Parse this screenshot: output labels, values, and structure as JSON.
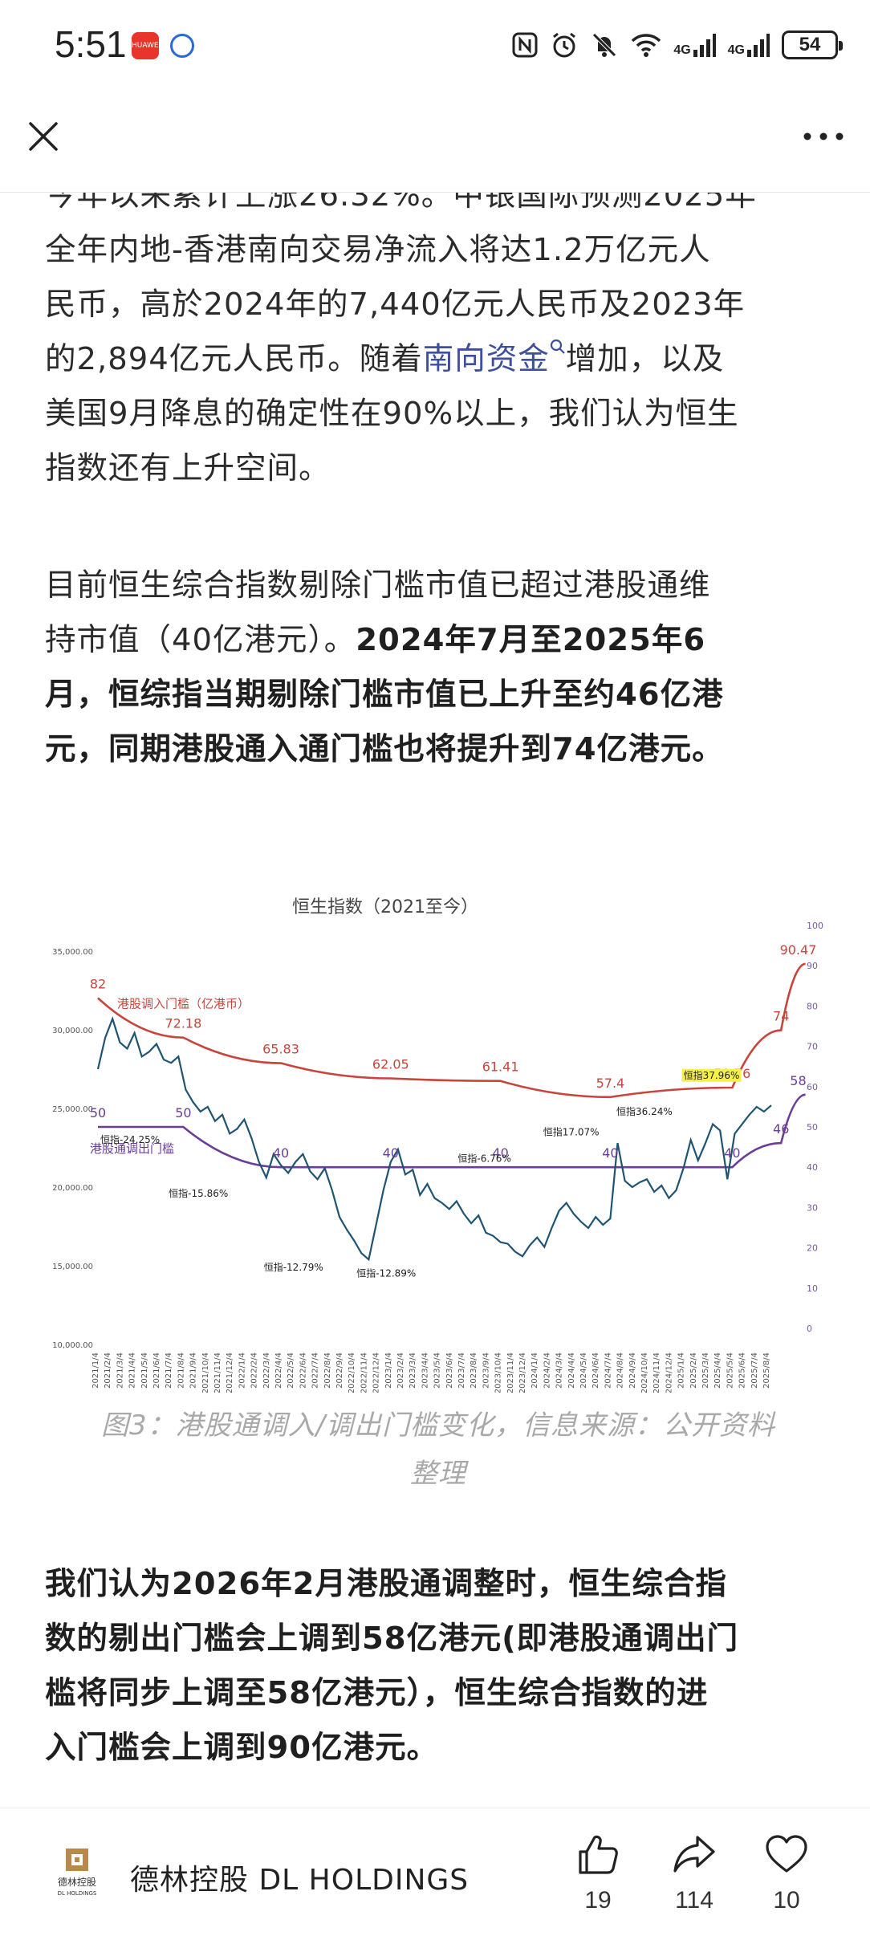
{
  "status_bar": {
    "time": "5:51",
    "red_app_label": "HUAWEI",
    "network_1": "4G",
    "network_2": "4G",
    "battery": "54"
  },
  "article": {
    "para1_lines": [
      "今年以来累计上涨26.32%。中银国际预测2025年",
      "全年内地-香港南向交易净流入将达1.2万亿元人",
      "民币，高於2024年的7,440亿元人民币及2023年"
    ],
    "para1_line4_before": "的2,894亿元人民币。随着",
    "para1_link": "南向资金",
    "para1_line4_after": "增加，以及",
    "para1_lines_end": [
      "美国9月降息的确定性在90%以上，我们认为恒生",
      "指数还有上升空间。"
    ],
    "para2_line1": "目前恒生综合指数剔除门槛市值已超过港股通维",
    "para2_line2_normal": "持市值（40亿港元）。",
    "para2_line2_bold": "2024年7月至2025年6",
    "para2_bold_lines": [
      "月，恒综指当期剔除门槛市值已上升至约46亿港",
      "元，同期港股通入通门槛也将提升到74亿港元。"
    ],
    "caption_lines": [
      "图3：港股通调入/调出门槛变化，信息来源：公开资料",
      "整理"
    ],
    "para3_lines": [
      "我们认为2026年2月港股通调整时，恒生综合指",
      "数的剔出门槛会上调到58亿港元(即港股通调出门",
      "槛将同步上调至58亿港元），恒生综合指数的进",
      "入门槛会上调到90亿港元。"
    ]
  },
  "chart_data": {
    "type": "line",
    "title": "恒生指数（2021至今）",
    "y_left_ticks": [
      "35,000.00",
      "30,000.00",
      "25,000.00",
      "20,000.00",
      "15,000.00",
      "10,000.00"
    ],
    "y_left_lim": [
      10000,
      35000
    ],
    "y_right_ticks": [
      "100",
      "90",
      "80",
      "70",
      "60",
      "50",
      "40",
      "30",
      "20",
      "10",
      "0"
    ],
    "y_right_lim": [
      0,
      100
    ],
    "x_ticks": [
      "2021/1/4",
      "2021/2/4",
      "2021/3/4",
      "2021/4/4",
      "2021/5/4",
      "2021/6/4",
      "2021/7/4",
      "2021/8/4",
      "2021/9/4",
      "2021/10/4",
      "2021/11/4",
      "2021/12/4",
      "2022/1/4",
      "2022/2/4",
      "2022/3/4",
      "2022/4/4",
      "2022/5/4",
      "2022/6/4",
      "2022/7/4",
      "2022/8/4",
      "2022/9/4",
      "2022/10/4",
      "2022/11/4",
      "2022/12/4",
      "2023/1/4",
      "2023/2/4",
      "2023/3/4",
      "2023/4/4",
      "2023/5/4",
      "2023/6/4",
      "2023/7/4",
      "2023/8/4",
      "2023/9/4",
      "2023/10/4",
      "2023/11/4",
      "2023/12/4",
      "2024/1/4",
      "2024/2/4",
      "2024/3/4",
      "2024/4/4",
      "2024/5/4",
      "2024/6/4",
      "2024/7/4",
      "2024/8/4",
      "2024/9/4",
      "2024/10/4",
      "2024/11/4",
      "2024/12/4",
      "2025/1/4",
      "2025/2/4",
      "2025/3/4",
      "2025/4/4",
      "2025/5/4",
      "2025/6/4",
      "2025/7/4",
      "2025/8/4"
    ],
    "series": [
      {
        "name": "港股调入门槛（亿港币）",
        "axis": "right",
        "color": "#c8453c",
        "x": [
          0,
          7,
          15,
          24,
          33,
          42,
          52,
          56
        ],
        "values": [
          82,
          72.18,
          65.83,
          62.05,
          61.41,
          57.4,
          59.76,
          74
        ],
        "end_label": "90.47",
        "end_value": 90.47,
        "point_labels": [
          "82",
          "72.18",
          "65.83",
          "62.05",
          "61.41",
          "57.4",
          "59.76",
          "74"
        ]
      },
      {
        "name": "港股通调出门槛",
        "axis": "right",
        "color": "#6a3e96",
        "x": [
          0,
          7,
          15,
          24,
          33,
          42,
          52,
          56
        ],
        "values": [
          50,
          50,
          40,
          40,
          40,
          40,
          40,
          46
        ],
        "end_label": "58",
        "end_value": 58,
        "point_labels": [
          "50",
          "50",
          "40",
          "40",
          "40",
          "40",
          "40",
          "46"
        ]
      },
      {
        "name": "恒生指数",
        "axis": "left",
        "color": "#1f5573",
        "x": [
          0,
          0.6,
          1.2,
          1.8,
          2.4,
          3,
          3.6,
          4.2,
          4.8,
          5.4,
          6,
          6.6,
          7.2,
          7.8,
          8.4,
          9,
          9.6,
          10.2,
          10.8,
          11.4,
          12,
          12.6,
          13.2,
          13.8,
          14.4,
          15,
          15.6,
          16.2,
          16.8,
          17.4,
          18,
          18.6,
          19.2,
          19.8,
          20.4,
          21,
          21.6,
          22.2,
          22.8,
          23.4,
          24,
          24.6,
          25.2,
          25.8,
          26.4,
          27,
          27.6,
          28.2,
          28.8,
          29.4,
          30,
          30.6,
          31.2,
          31.8,
          32.4,
          33,
          33.6,
          34.2,
          34.8,
          35.4,
          36,
          36.6,
          37.2,
          37.8,
          38.4,
          39,
          39.6,
          40.2,
          40.8,
          41.4,
          42,
          42.6,
          43.2,
          43.8,
          44.4,
          45,
          45.6,
          46.2,
          46.8,
          47.4,
          48,
          48.6,
          49.2,
          49.8,
          50.4,
          51,
          51.6,
          52.2,
          52.8,
          53.4,
          54,
          54.6,
          55.2
        ],
        "values": [
          27500,
          29500,
          30700,
          29200,
          28800,
          29800,
          28300,
          28600,
          29100,
          28100,
          27900,
          28300,
          26200,
          25400,
          24800,
          25100,
          24200,
          24600,
          23400,
          23700,
          24300,
          23100,
          21600,
          20600,
          22100,
          21400,
          20900,
          21600,
          22100,
          21000,
          20500,
          21200,
          19800,
          18100,
          17300,
          16600,
          15800,
          15400,
          17600,
          19800,
          21600,
          22400,
          20800,
          21100,
          19500,
          20200,
          19300,
          19000,
          18600,
          19100,
          18300,
          17700,
          18200,
          17100,
          16900,
          16500,
          16400,
          15900,
          15600,
          16300,
          16800,
          16200,
          17400,
          18500,
          19000,
          18300,
          17800,
          17400,
          18100,
          17600,
          18000,
          22800,
          20400,
          20000,
          20300,
          20500,
          19700,
          20100,
          19300,
          19800,
          21200,
          23000,
          21700,
          22800,
          24000,
          23600,
          20500,
          23400,
          24000,
          24600,
          25100,
          24800,
          25200
        ]
      }
    ],
    "annotations": [
      {
        "text": "恒指-24.25%",
        "x": 0.2,
        "y": 22800
      },
      {
        "text": "恒指-15.86%",
        "x": 5.8,
        "y": 19400
      },
      {
        "text": "恒指-12.79%",
        "x": 13.6,
        "y": 14700
      },
      {
        "text": "恒指-12.89%",
        "x": 21.2,
        "y": 14300
      },
      {
        "text": "恒指-6.76%",
        "x": 29.5,
        "y": 21600
      },
      {
        "text": "恒指17.07%",
        "x": 36.5,
        "y": 23300
      },
      {
        "text": "恒指36.24%",
        "x": 42.5,
        "y": 24600
      },
      {
        "text": "恒指37.96%",
        "x": 48.0,
        "y": 26900
      }
    ],
    "highlight_label": "恒指37.96%",
    "highlight_color": "#f5f04a"
  },
  "bottom_bar": {
    "logo_text_1": "德林控股",
    "logo_text_2": "DL HOLDINGS",
    "author": "德林控股 DL HOLDINGS",
    "likes": "19",
    "shares": "114",
    "favorites": "10"
  }
}
